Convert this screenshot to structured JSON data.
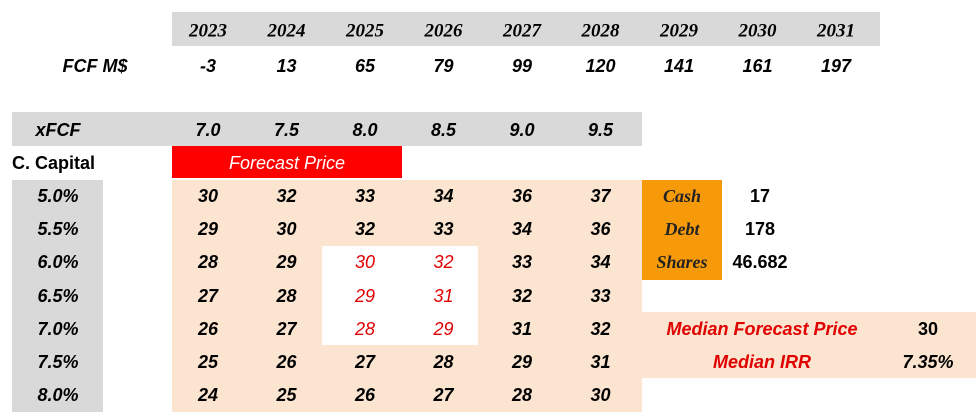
{
  "header": {
    "years": [
      "2023",
      "2024",
      "2025",
      "2026",
      "2027",
      "2028",
      "2029",
      "2030",
      "2031"
    ]
  },
  "fcf": {
    "label": "FCF M$",
    "values": [
      "-3",
      "13",
      "65",
      "79",
      "99",
      "120",
      "141",
      "161",
      "197"
    ]
  },
  "xfcf": {
    "label": "xFCF",
    "values": [
      "7.0",
      "7.5",
      "8.0",
      "8.5",
      "9.0",
      "9.5"
    ]
  },
  "matrix": {
    "label": "C. Capital",
    "title": "Forecast Price",
    "rates": [
      "5.0%",
      "5.5%",
      "6.0%",
      "6.5%",
      "7.0%",
      "7.5%",
      "8.0%"
    ],
    "rows": [
      [
        "30",
        "32",
        "33",
        "34",
        "36",
        "37"
      ],
      [
        "29",
        "30",
        "32",
        "33",
        "34",
        "36"
      ],
      [
        "28",
        "29",
        "30",
        "32",
        "33",
        "34"
      ],
      [
        "27",
        "28",
        "29",
        "31",
        "32",
        "33"
      ],
      [
        "26",
        "27",
        "28",
        "29",
        "31",
        "32"
      ],
      [
        "25",
        "26",
        "27",
        "28",
        "29",
        "31"
      ],
      [
        "24",
        "25",
        "26",
        "27",
        "28",
        "30"
      ]
    ]
  },
  "balance": {
    "items": [
      {
        "label": "Cash",
        "value": "17"
      },
      {
        "label": "Debt",
        "value": "178"
      },
      {
        "label": "Shares",
        "value": "46.682"
      }
    ]
  },
  "summary": {
    "items": [
      {
        "label": "Median Forecast Price",
        "value": "30"
      },
      {
        "label": "Median IRR",
        "value": "7.35%"
      }
    ]
  }
}
